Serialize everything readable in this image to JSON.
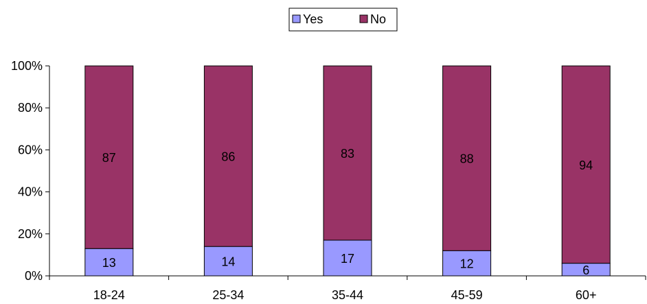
{
  "chart_data": {
    "type": "bar",
    "stacked": true,
    "percent_stacked": true,
    "categories": [
      "18-24",
      "25-34",
      "35-44",
      "45-59",
      "60+"
    ],
    "series": [
      {
        "name": "Yes",
        "color": "#9999ff",
        "values": [
          13,
          14,
          17,
          12,
          6
        ]
      },
      {
        "name": "No",
        "color": "#993366",
        "values": [
          87,
          86,
          83,
          88,
          94
        ]
      }
    ],
    "ylim": [
      0,
      100
    ],
    "yticks": [
      "0%",
      "20%",
      "40%",
      "60%",
      "80%",
      "100%"
    ],
    "grid": false,
    "legend_position": "top-center"
  }
}
